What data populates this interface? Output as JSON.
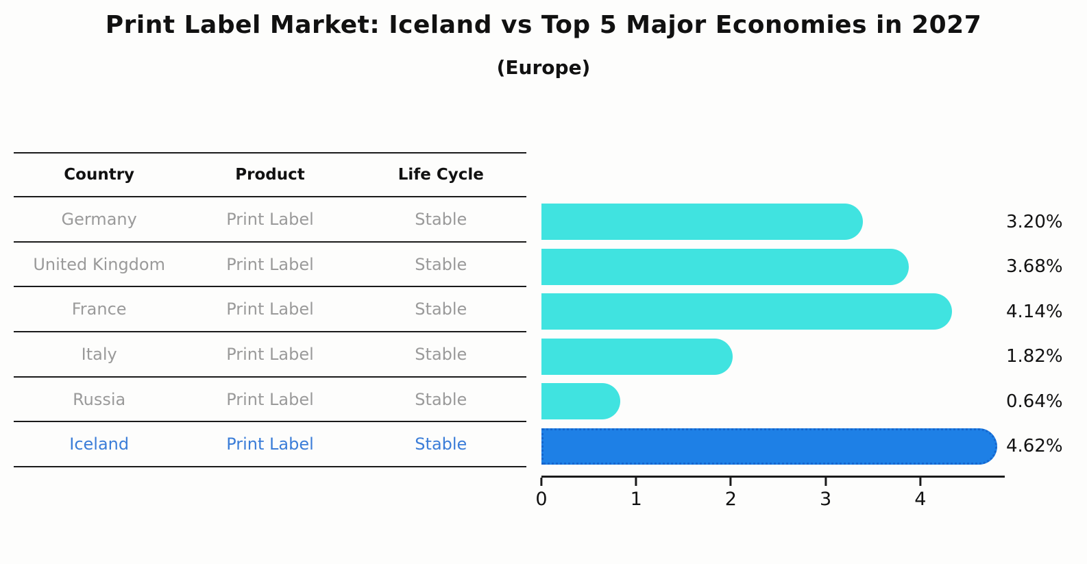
{
  "title": "Print Label Market: Iceland vs Top 5 Major Economies in 2027",
  "subtitle": "(Europe)",
  "table": {
    "headers": [
      "Country",
      "Product",
      "Life Cycle"
    ],
    "rows": [
      [
        "Germany",
        "Print Label",
        "Stable"
      ],
      [
        "United Kingdom",
        "Print Label",
        "Stable"
      ],
      [
        "France",
        "Print Label",
        "Stable"
      ],
      [
        "Italy",
        "Print Label",
        "Stable"
      ],
      [
        "Russia",
        "Print Label",
        "Stable"
      ],
      [
        "Iceland",
        "Print Label",
        "Stable"
      ]
    ],
    "highlight_row": 5
  },
  "chart_data": {
    "type": "bar",
    "orientation": "horizontal",
    "title": "Print Label Market: Iceland vs Top 5 Major Economies in 2027",
    "subtitle": "(Europe)",
    "categories": [
      "Germany",
      "United Kingdom",
      "France",
      "Italy",
      "Russia",
      "Iceland"
    ],
    "values": [
      3.2,
      3.68,
      4.14,
      1.82,
      0.64,
      4.62
    ],
    "value_labels": [
      "3.20%",
      "3.68%",
      "4.14%",
      "1.82%",
      "0.64%",
      "4.62%"
    ],
    "highlight_index": 5,
    "xlabel": "",
    "ylabel": "",
    "xticks": [
      0,
      1,
      2,
      3,
      4
    ],
    "xtick_labels": [
      "0",
      "1",
      "2",
      "3",
      "4"
    ],
    "xlim": [
      0,
      4.85
    ],
    "grid": false,
    "legend": false,
    "colors": {
      "bar": "#40E3E0",
      "highlight_bar": "#1E80E6",
      "highlight_bar_border": "#1566CE",
      "axis": "#1a1a1a",
      "value_label": "#111111"
    }
  },
  "colors": {
    "background": "#fdfdfc",
    "table_text": "#9a9a9a",
    "table_header_text": "#111111",
    "highlight_text": "#3B7DD8"
  }
}
